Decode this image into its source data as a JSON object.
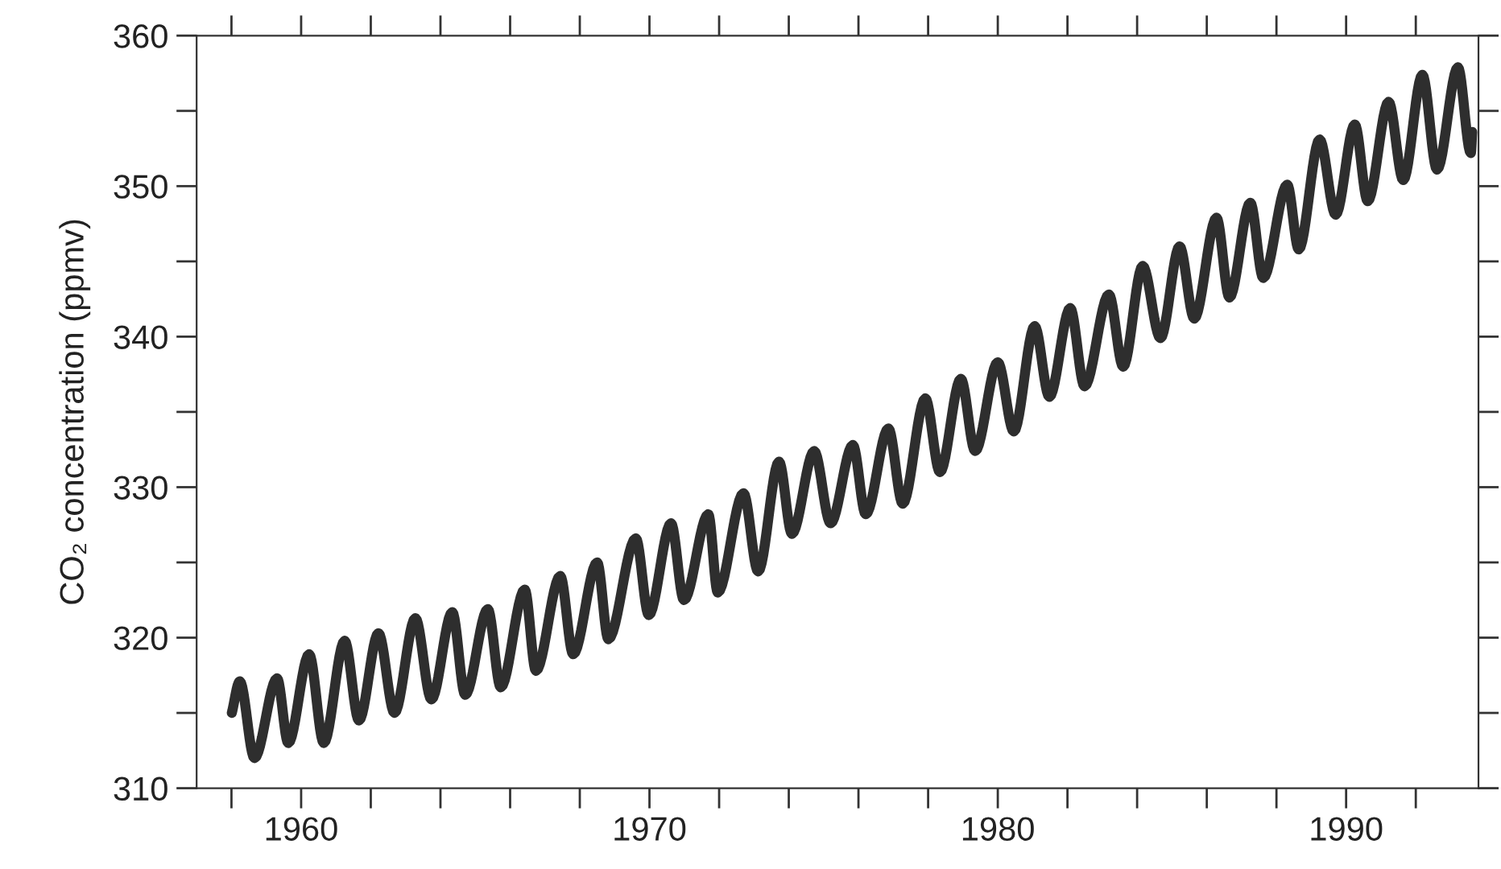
{
  "chart_data": {
    "type": "line",
    "ylabel": "CO₂ concentration (ppmv)",
    "xlim": [
      1957.0,
      1993.8
    ],
    "xticks": [
      {
        "value": 1958,
        "label": null
      },
      {
        "value": 1960,
        "label": "1960"
      },
      {
        "value": 1962,
        "label": null
      },
      {
        "value": 1964,
        "label": null
      },
      {
        "value": 1966,
        "label": null
      },
      {
        "value": 1968,
        "label": null
      },
      {
        "value": 1970,
        "label": "1970"
      },
      {
        "value": 1972,
        "label": null
      },
      {
        "value": 1974,
        "label": null
      },
      {
        "value": 1976,
        "label": null
      },
      {
        "value": 1978,
        "label": null
      },
      {
        "value": 1980,
        "label": "1980"
      },
      {
        "value": 1982,
        "label": null
      },
      {
        "value": 1984,
        "label": null
      },
      {
        "value": 1986,
        "label": null
      },
      {
        "value": 1988,
        "label": null
      },
      {
        "value": 1990,
        "label": "1990"
      },
      {
        "value": 1992,
        "label": null
      }
    ],
    "ylim": [
      310,
      360
    ],
    "yticks": [
      310,
      {
        "value": 315,
        "label": null
      },
      320,
      {
        "value": 325,
        "label": null
      },
      330,
      {
        "value": 335,
        "label": null
      },
      340,
      {
        "value": 345,
        "label": null
      },
      350,
      {
        "value": 355,
        "label": null
      },
      360
    ],
    "grid": false,
    "legend": false,
    "marker": "none",
    "line_style": "solid",
    "x": [
      1958.01,
      1958.24,
      1958.66,
      1959.31,
      1959.63,
      1960.23,
      1960.65,
      1961.25,
      1961.66,
      1962.22,
      1962.68,
      1963.28,
      1963.74,
      1964.34,
      1964.71,
      1965.36,
      1965.73,
      1966.42,
      1966.74,
      1967.44,
      1967.81,
      1968.5,
      1968.82,
      1969.61,
      1969.98,
      1970.62,
      1970.99,
      1971.69,
      1971.96,
      1972.7,
      1973.12,
      1973.72,
      1974.09,
      1974.73,
      1975.2,
      1975.84,
      1976.21,
      1976.86,
      1977.27,
      1977.92,
      1978.34,
      1978.94,
      1979.35,
      1980.0,
      1980.46,
      1981.06,
      1981.48,
      1982.08,
      1982.49,
      1983.19,
      1983.6,
      1984.16,
      1984.67,
      1985.22,
      1985.64,
      1986.28,
      1986.65,
      1987.25,
      1987.62,
      1988.31,
      1988.64,
      1989.24,
      1989.7,
      1990.25,
      1990.62,
      1991.22,
      1991.64,
      1992.19,
      1992.61,
      1993.21,
      1993.58,
      1993.62
    ],
    "series": [
      {
        "color": "#2e2e2e",
        "values": [
          315.0,
          317.1,
          312.0,
          317.3,
          313.0,
          318.9,
          313.0,
          319.8,
          314.5,
          320.3,
          315.0,
          321.3,
          315.9,
          321.7,
          316.2,
          321.9,
          316.7,
          323.2,
          317.8,
          324.1,
          318.9,
          325.0,
          319.9,
          326.6,
          321.5,
          327.6,
          322.5,
          328.2,
          323.0,
          329.6,
          324.4,
          331.7,
          326.9,
          332.4,
          327.6,
          332.8,
          328.2,
          333.9,
          328.9,
          335.9,
          331.0,
          337.2,
          332.4,
          338.3,
          333.7,
          340.7,
          336.0,
          341.9,
          336.7,
          342.8,
          338.0,
          344.7,
          339.9,
          346.0,
          341.2,
          347.9,
          342.6,
          348.9,
          343.9,
          350.1,
          345.8,
          353.1,
          348.1,
          354.1,
          349.0,
          355.6,
          350.4,
          357.4,
          351.1,
          357.9,
          352.2,
          353.6
        ]
      }
    ]
  }
}
